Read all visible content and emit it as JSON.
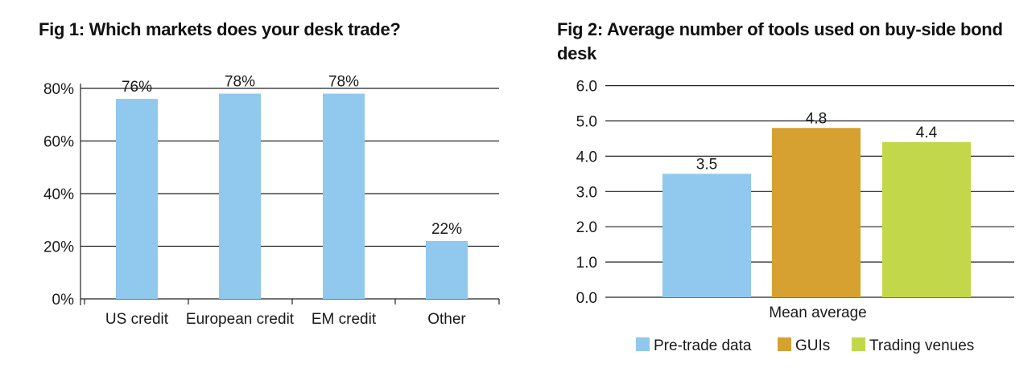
{
  "chart_data": [
    {
      "type": "bar",
      "title": "Fig 1: Which markets does your desk trade?",
      "categories": [
        "US credit",
        "European credit",
        "EM credit",
        "Other"
      ],
      "values": [
        76,
        78,
        78,
        22
      ],
      "data_labels": [
        "76%",
        "78%",
        "78%",
        "22%"
      ],
      "yticks": [
        "0%",
        "20%",
        "40%",
        "60%",
        "80%"
      ],
      "ylim": [
        0,
        85
      ],
      "grid": true,
      "colors": {
        "bar": "#90C8EE",
        "grid": "#222222"
      }
    },
    {
      "type": "bar",
      "title": "Fig 2: Average number of tools used on buy-side bond desk",
      "categories": [
        "Mean average"
      ],
      "series": [
        {
          "name": "Pre-trade data",
          "values": [
            3.5
          ],
          "label": "3.5",
          "color": "#90C8EE"
        },
        {
          "name": "GUIs",
          "values": [
            4.8
          ],
          "label": "4.8",
          "color": "#D6A131"
        },
        {
          "name": "Trading venues",
          "values": [
            4.4
          ],
          "label": "4.4",
          "color": "#C2D84A"
        }
      ],
      "yticks": [
        "0.0",
        "1.0",
        "2.0",
        "3.0",
        "4.0",
        "5.0",
        "6.0"
      ],
      "ylim": [
        0,
        6
      ],
      "grid": true,
      "legend": "bottom"
    }
  ]
}
